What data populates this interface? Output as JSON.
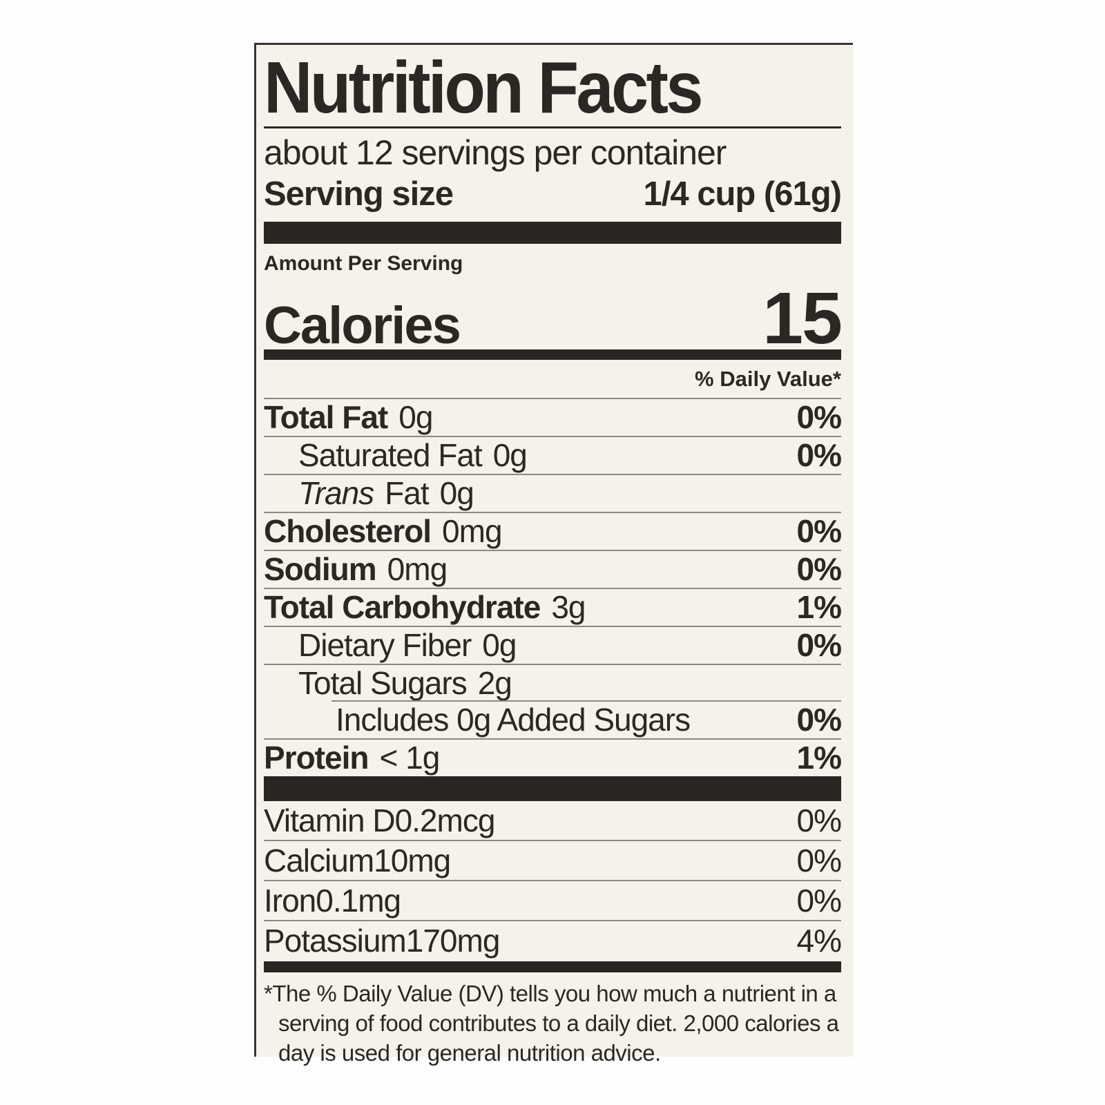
{
  "label": {
    "title": "Nutrition Facts",
    "servings_per_container": "about 12 servings per container",
    "serving_size": {
      "label": "Serving size",
      "value": "1/4 cup (61g)"
    },
    "amount_per_serving": "Amount Per Serving",
    "calories": {
      "label": "Calories",
      "value": "15"
    },
    "daily_value_header": "% Daily Value*",
    "rows": [
      {
        "label": "Total Fat",
        "value": "0g",
        "dv": "0%"
      },
      {
        "label": "Saturated Fat",
        "value": "0g",
        "dv": "0%"
      },
      {
        "label_italic": "Trans",
        "label": "Fat",
        "value": "0g",
        "dv": ""
      },
      {
        "label": "Cholesterol",
        "value": "0mg",
        "dv": "0%"
      },
      {
        "label": "Sodium",
        "value": "0mg",
        "dv": "0%"
      },
      {
        "label": "Total Carbohydrate",
        "value": "3g",
        "dv": "1%"
      },
      {
        "label": "Dietary Fiber",
        "value": "0g",
        "dv": "0%"
      },
      {
        "label": "Total Sugars",
        "value": "2g",
        "dv": ""
      },
      {
        "label": "Includes 0g Added Sugars",
        "value": "",
        "dv": "0%"
      },
      {
        "label": "Protein",
        "value": "< 1g",
        "dv": "1%"
      }
    ],
    "vitamins": [
      {
        "label": "Vitamin D",
        "value": "0.2mcg",
        "dv": "0%"
      },
      {
        "label": "Calcium",
        "value": "10mg",
        "dv": "0%"
      },
      {
        "label": "Iron",
        "value": "0.1mg",
        "dv": "0%"
      },
      {
        "label": "Potassium",
        "value": "170mg",
        "dv": "4%"
      }
    ],
    "footnote_lines": [
      "*The % Daily Value (DV) tells you how much a nutrient in a",
      "serving of food contributes to a daily diet. 2,000 calories a",
      "day is used for general nutrition advice."
    ],
    "colors": {
      "page_background": "#fefefe",
      "label_background": "#f4f2ea",
      "ink": "#2c2722",
      "bar": "#2a2521",
      "hairline": "#8e887d",
      "border": "#39342e"
    }
  }
}
